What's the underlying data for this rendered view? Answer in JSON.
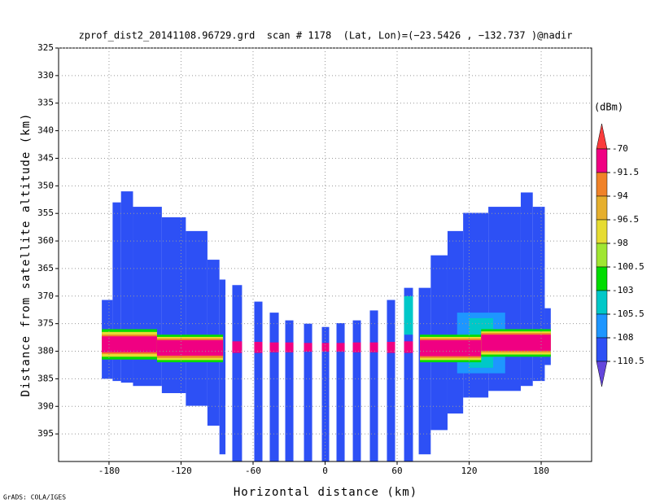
{
  "chart_data": {
    "type": "heatmap",
    "title": "zprof_dist2_20141108.96729.grd  scan # 1178  (Lat, Lon)=(−23.5426 , −132.737 )@nadir",
    "x_label": "Horizontal distance (km)",
    "y_label": "Distance from satellite altitude (km)",
    "footer": "GrADS: COLA/IGES",
    "xlim": [
      -222,
      222
    ],
    "xticks": [
      -180,
      -120,
      -60,
      0,
      60,
      120,
      180
    ],
    "ylim": [
      400,
      325
    ],
    "yticks": [
      325,
      330,
      335,
      340,
      345,
      350,
      355,
      360,
      365,
      370,
      375,
      380,
      385,
      390,
      395
    ],
    "grid": true,
    "colorbar": {
      "label": "(dBm)",
      "levels": [
        -70,
        -91.5,
        -94,
        -96.5,
        -98,
        -100.5,
        -103,
        -105.5,
        -108,
        -110.5
      ],
      "colors": [
        "#fa3c3c",
        "#f00082",
        "#f08228",
        "#e6af2d",
        "#e6dc32",
        "#a0e632",
        "#00dc00",
        "#00c8c8",
        "#1e96ff",
        "#2d50f5",
        "#6446dc"
      ]
    },
    "cells": [
      {
        "x": [
          -186,
          -177
        ],
        "y": [
          370.7,
          385
        ],
        "value": -109
      },
      {
        "x": [
          -177,
          -170
        ],
        "y": [
          353,
          385.4
        ],
        "value": -109
      },
      {
        "x": [
          -170,
          -160
        ],
        "y": [
          351,
          385.7
        ],
        "value": -109
      },
      {
        "x": [
          -160,
          -136
        ],
        "y": [
          353.8,
          386.3
        ],
        "value": -109
      },
      {
        "x": [
          -136,
          -116
        ],
        "y": [
          355.7,
          387.6
        ],
        "value": -109
      },
      {
        "x": [
          -116,
          -98
        ],
        "y": [
          358.2,
          389.9
        ],
        "value": -109
      },
      {
        "x": [
          -98,
          -88
        ],
        "y": [
          363.4,
          393.5
        ],
        "value": -109
      },
      {
        "x": [
          -88,
          -83
        ],
        "y": [
          367,
          398.7
        ],
        "value": -109
      },
      {
        "x": [
          -77.3,
          -69.2
        ],
        "y": [
          368,
          400
        ],
        "value": -109
      },
      {
        "x": [
          -59,
          -52.2
        ],
        "y": [
          371,
          400
        ],
        "value": -109
      },
      {
        "x": [
          -46.1,
          -38.6
        ],
        "y": [
          373,
          400
        ],
        "value": -109
      },
      {
        "x": [
          -33.2,
          -26.4
        ],
        "y": [
          374.4,
          400
        ],
        "value": -109
      },
      {
        "x": [
          -17.6,
          -10.8
        ],
        "y": [
          375,
          400
        ],
        "value": -109
      },
      {
        "x": [
          -2.7,
          3.4
        ],
        "y": [
          375.6,
          400
        ],
        "value": -109
      },
      {
        "x": [
          9.5,
          16.3
        ],
        "y": [
          374.9,
          400
        ],
        "value": -109
      },
      {
        "x": [
          23.1,
          29.8
        ],
        "y": [
          374.4,
          400
        ],
        "value": -109
      },
      {
        "x": [
          37.3,
          44.1
        ],
        "y": [
          372.6,
          400
        ],
        "value": -109
      },
      {
        "x": [
          51.5,
          58.3
        ],
        "y": [
          370.7,
          400
        ],
        "value": -109
      },
      {
        "x": [
          65.8,
          73.2
        ],
        "y": [
          368.5,
          400
        ],
        "value": -109
      },
      {
        "x": [
          78,
          88
        ],
        "y": [
          368.5,
          398.7
        ],
        "value": -109
      },
      {
        "x": [
          88,
          102
        ],
        "y": [
          362.6,
          394.3
        ],
        "value": -109
      },
      {
        "x": [
          102,
          115
        ],
        "y": [
          358.2,
          391.3
        ],
        "value": -109
      },
      {
        "x": [
          115,
          136
        ],
        "y": [
          354.9,
          388.4
        ],
        "value": -109
      },
      {
        "x": [
          136,
          163
        ],
        "y": [
          353.8,
          387.2
        ],
        "value": -109
      },
      {
        "x": [
          163,
          173
        ],
        "y": [
          351.2,
          386.3
        ],
        "value": -109
      },
      {
        "x": [
          173,
          183
        ],
        "y": [
          353.8,
          385.4
        ],
        "value": -109
      },
      {
        "x": [
          183,
          188
        ],
        "y": [
          372.2,
          382.5
        ],
        "value": -109
      },
      {
        "x": [
          110,
          150
        ],
        "y": [
          373,
          384
        ],
        "value": -107
      },
      {
        "x": [
          120,
          140
        ],
        "y": [
          374,
          383
        ],
        "value": -104
      },
      {
        "x": [
          -186,
          -140
        ],
        "y": [
          376,
          381.5
        ],
        "value": -101
      },
      {
        "x": [
          -186,
          -140
        ],
        "y": [
          376.5,
          381
        ],
        "value": -97
      },
      {
        "x": [
          -186,
          -140
        ],
        "y": [
          377,
          380.5
        ],
        "value": -93
      },
      {
        "x": [
          -186,
          -140
        ],
        "y": [
          377.3,
          380.2
        ],
        "value": -85
      },
      {
        "x": [
          -140,
          -85
        ],
        "y": [
          377,
          382
        ],
        "value": -101
      },
      {
        "x": [
          -140,
          -85
        ],
        "y": [
          377.4,
          381.6
        ],
        "value": -97
      },
      {
        "x": [
          -140,
          -85
        ],
        "y": [
          377.7,
          381.2
        ],
        "value": -93
      },
      {
        "x": [
          -140,
          -85
        ],
        "y": [
          378,
          380.8
        ],
        "value": -85
      },
      {
        "x": [
          79,
          130
        ],
        "y": [
          377,
          382
        ],
        "value": -101
      },
      {
        "x": [
          79,
          130
        ],
        "y": [
          377.4,
          381.6
        ],
        "value": -97
      },
      {
        "x": [
          79,
          130
        ],
        "y": [
          377.7,
          381.2
        ],
        "value": -93
      },
      {
        "x": [
          79,
          130
        ],
        "y": [
          378,
          380.9
        ],
        "value": -85
      },
      {
        "x": [
          130,
          188
        ],
        "y": [
          376,
          381
        ],
        "value": -101
      },
      {
        "x": [
          130,
          188
        ],
        "y": [
          376.4,
          380.6
        ],
        "value": -97
      },
      {
        "x": [
          130,
          188
        ],
        "y": [
          376.7,
          380.2
        ],
        "value": -93
      },
      {
        "x": [
          130,
          188
        ],
        "y": [
          377,
          379.9
        ],
        "value": -85
      },
      {
        "x": [
          -77.3,
          -69.2
        ],
        "y": [
          378.2,
          380.3
        ],
        "value": -85
      },
      {
        "x": [
          -59,
          -52.2
        ],
        "y": [
          378.3,
          380.3
        ],
        "value": -85
      },
      {
        "x": [
          -46.1,
          -38.6
        ],
        "y": [
          378.4,
          380.2
        ],
        "value": -85
      },
      {
        "x": [
          -33.2,
          -26.4
        ],
        "y": [
          378.4,
          380.2
        ],
        "value": -85
      },
      {
        "x": [
          -17.6,
          -10.8
        ],
        "y": [
          378.5,
          380.1
        ],
        "value": -85
      },
      {
        "x": [
          -2.7,
          3.4
        ],
        "y": [
          378.5,
          380.1
        ],
        "value": -85
      },
      {
        "x": [
          9.5,
          16.3
        ],
        "y": [
          378.5,
          380.1
        ],
        "value": -85
      },
      {
        "x": [
          23.1,
          29.8
        ],
        "y": [
          378.4,
          380.2
        ],
        "value": -85
      },
      {
        "x": [
          37.3,
          44.1
        ],
        "y": [
          378.4,
          380.2
        ],
        "value": -85
      },
      {
        "x": [
          51.5,
          58.3
        ],
        "y": [
          378.3,
          380.3
        ],
        "value": -85
      },
      {
        "x": [
          65.8,
          73.2
        ],
        "y": [
          378.2,
          380.3
        ],
        "value": -85
      },
      {
        "x": [
          65.8,
          73.2
        ],
        "y": [
          370,
          377
        ],
        "value": -104
      }
    ]
  }
}
